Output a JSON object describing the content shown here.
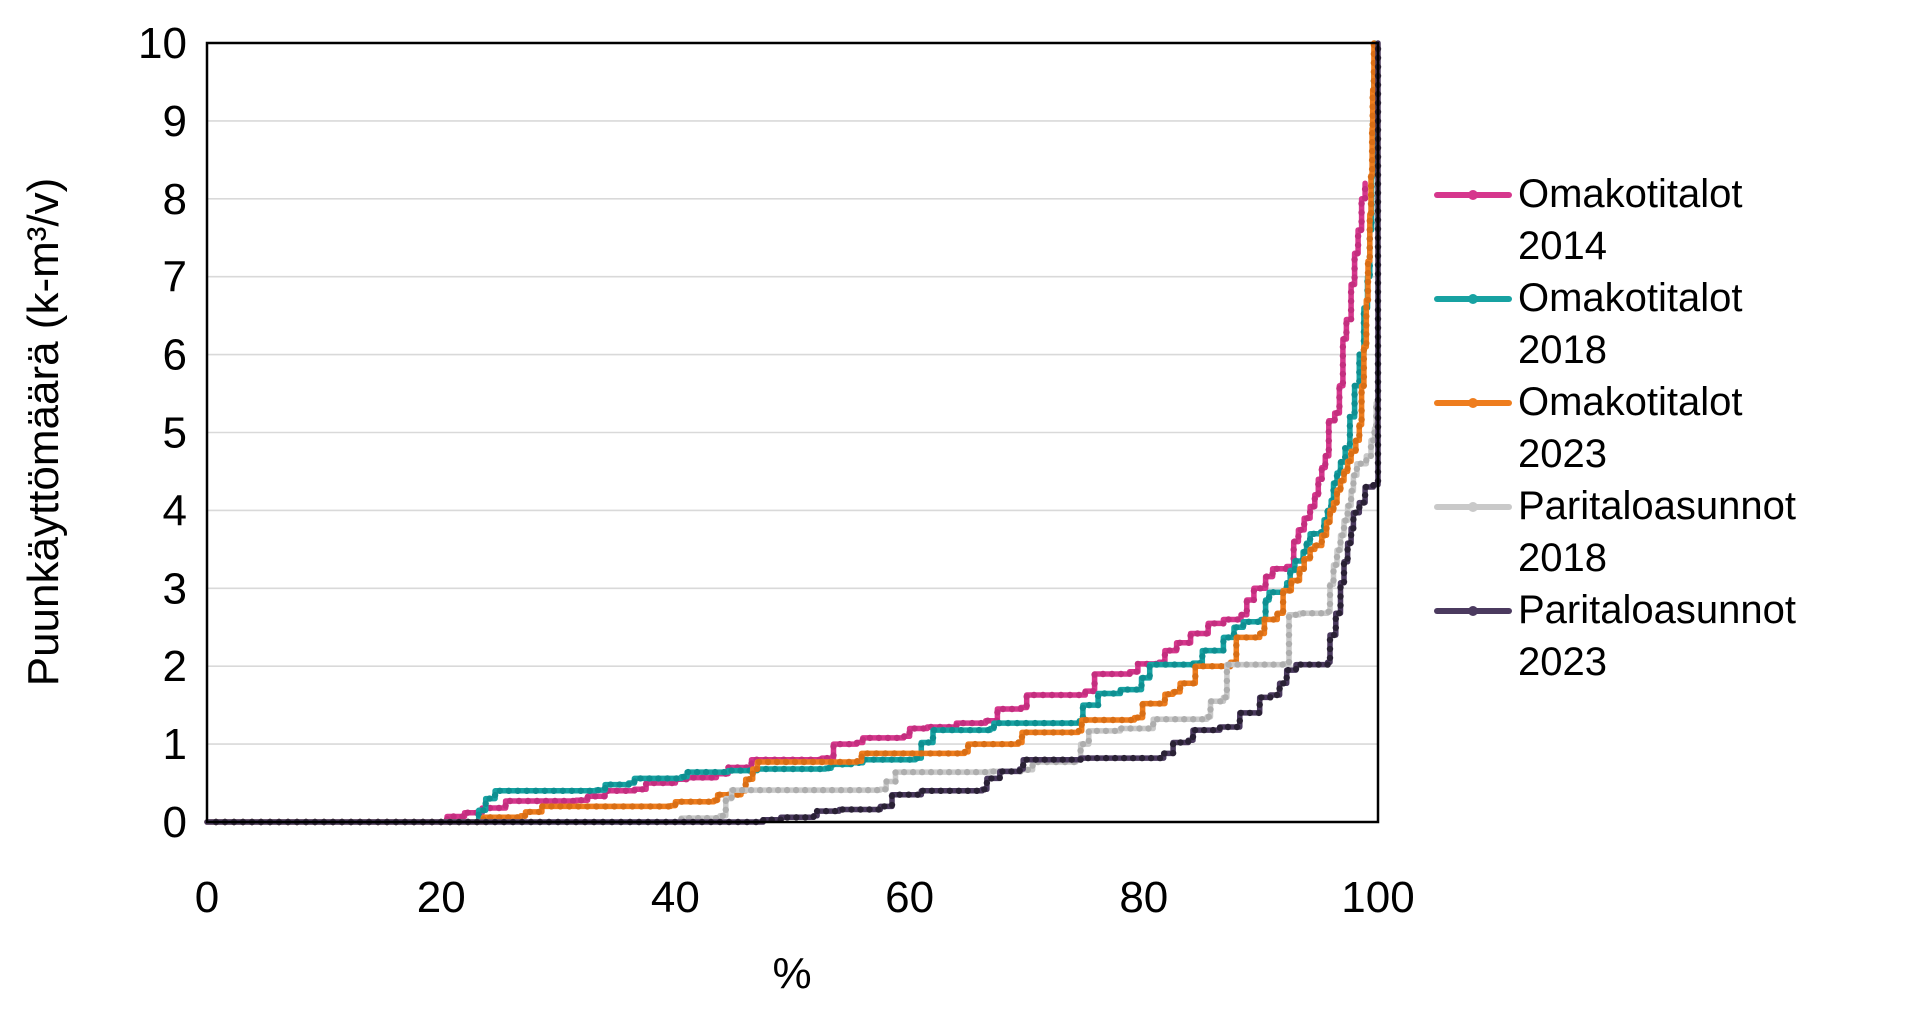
{
  "chart_data": {
    "type": "line",
    "title": "",
    "xlabel": "%",
    "ylabel": "Puunkäyttömäärä (k-m³/v)",
    "xlim": [
      0,
      100
    ],
    "ylim": [
      0,
      10
    ],
    "x_ticks": [
      0,
      20,
      40,
      60,
      80,
      100
    ],
    "y_ticks": [
      0,
      1,
      2,
      3,
      4,
      5,
      6,
      7,
      8,
      9,
      10
    ],
    "grid": "horizontal",
    "grid_color": "#d9d9d9",
    "legend_position": "right",
    "step_interpolation": "step-after",
    "series": [
      {
        "name": "Omakotitalot 2014",
        "label_lines": [
          "Omakotitalot",
          "2014"
        ],
        "color": "#d6378d",
        "marker_color": "#c42e7f",
        "points": [
          [
            0,
            0
          ],
          [
            19.5,
            0
          ],
          [
            20.5,
            0.07
          ],
          [
            22,
            0.12
          ],
          [
            23.5,
            0.18
          ],
          [
            25.5,
            0.27
          ],
          [
            31.5,
            0.28
          ],
          [
            32.5,
            0.33
          ],
          [
            34,
            0.4
          ],
          [
            36.5,
            0.42
          ],
          [
            37.5,
            0.5
          ],
          [
            40,
            0.55
          ],
          [
            41,
            0.57
          ],
          [
            43.5,
            0.62
          ],
          [
            44.5,
            0.7
          ],
          [
            46.5,
            0.8
          ],
          [
            52.5,
            0.82
          ],
          [
            53.5,
            1.0
          ],
          [
            55.5,
            1.02
          ],
          [
            56,
            1.08
          ],
          [
            59.5,
            1.1
          ],
          [
            60,
            1.2
          ],
          [
            61.5,
            1.22
          ],
          [
            64,
            1.27
          ],
          [
            66.5,
            1.3
          ],
          [
            67.5,
            1.45
          ],
          [
            69.5,
            1.47
          ],
          [
            70,
            1.63
          ],
          [
            75,
            1.68
          ],
          [
            75.8,
            1.9
          ],
          [
            78.8,
            1.93
          ],
          [
            79.5,
            2.03
          ],
          [
            81.3,
            2.05
          ],
          [
            81.8,
            2.2
          ],
          [
            82.8,
            2.3
          ],
          [
            84,
            2.42
          ],
          [
            85.5,
            2.55
          ],
          [
            86.8,
            2.6
          ],
          [
            88.3,
            2.66
          ],
          [
            88.8,
            2.85
          ],
          [
            89.4,
            3.0
          ],
          [
            90.4,
            3.15
          ],
          [
            91,
            3.25
          ],
          [
            92.2,
            3.28
          ],
          [
            92.8,
            3.6
          ],
          [
            93.2,
            3.75
          ],
          [
            93.7,
            3.9
          ],
          [
            94.2,
            4.05
          ],
          [
            94.6,
            4.2
          ],
          [
            94.9,
            4.4
          ],
          [
            95.2,
            4.55
          ],
          [
            95.5,
            4.7
          ],
          [
            95.8,
            5.15
          ],
          [
            96.3,
            5.25
          ],
          [
            96.7,
            5.6
          ],
          [
            97,
            6.2
          ],
          [
            97.3,
            6.45
          ],
          [
            97.7,
            6.9
          ],
          [
            98,
            7.3
          ],
          [
            98.3,
            7.6
          ],
          [
            98.6,
            8.0
          ],
          [
            98.9,
            8.2
          ]
        ]
      },
      {
        "name": "Omakotitalot 2018",
        "label_lines": [
          "Omakotitalot",
          "2018"
        ],
        "color": "#17a2a2",
        "marker_color": "#0e8f91",
        "points": [
          [
            0,
            0
          ],
          [
            22.8,
            0
          ],
          [
            23.2,
            0.15
          ],
          [
            23.8,
            0.3
          ],
          [
            24.6,
            0.4
          ],
          [
            33.2,
            0.41
          ],
          [
            34,
            0.48
          ],
          [
            36,
            0.5
          ],
          [
            36.5,
            0.56
          ],
          [
            40.5,
            0.58
          ],
          [
            41,
            0.64
          ],
          [
            44.5,
            0.66
          ],
          [
            47,
            0.68
          ],
          [
            52.8,
            0.69
          ],
          [
            53.3,
            0.74
          ],
          [
            55,
            0.76
          ],
          [
            56,
            0.8
          ],
          [
            60.5,
            0.82
          ],
          [
            61,
            1.02
          ],
          [
            62,
            1.18
          ],
          [
            66.9,
            1.2
          ],
          [
            67.2,
            1.27
          ],
          [
            74.5,
            1.3
          ],
          [
            74.8,
            1.5
          ],
          [
            76.1,
            1.65
          ],
          [
            78,
            1.7
          ],
          [
            79.8,
            1.85
          ],
          [
            80.5,
            2.02
          ],
          [
            84.2,
            2.04
          ],
          [
            85,
            2.2
          ],
          [
            86.8,
            2.37
          ],
          [
            87.7,
            2.5
          ],
          [
            88.5,
            2.57
          ],
          [
            90,
            2.6
          ],
          [
            90.4,
            2.85
          ],
          [
            90.7,
            2.95
          ],
          [
            91.9,
            2.97
          ],
          [
            92.2,
            3.07
          ],
          [
            92.5,
            3.23
          ],
          [
            92.9,
            3.35
          ],
          [
            93.6,
            3.47
          ],
          [
            93.9,
            3.58
          ],
          [
            94.2,
            3.7
          ],
          [
            95.1,
            3.72
          ],
          [
            95.4,
            3.88
          ],
          [
            95.7,
            4.0
          ],
          [
            96,
            4.13
          ],
          [
            96.2,
            4.35
          ],
          [
            96.5,
            4.48
          ],
          [
            96.8,
            4.62
          ],
          [
            97.2,
            4.8
          ],
          [
            97.6,
            5.2
          ],
          [
            98,
            5.6
          ],
          [
            98.4,
            6.0
          ],
          [
            98.8,
            6.6
          ],
          [
            99.1,
            7.0
          ],
          [
            99.3,
            7.6
          ],
          [
            99.45,
            8.3
          ],
          [
            99.55,
            9.0
          ],
          [
            99.65,
            9.6
          ],
          [
            99.7,
            10
          ]
        ]
      },
      {
        "name": "Omakotitalot 2023",
        "label_lines": [
          "Omakotitalot",
          "2023"
        ],
        "color": "#ee7d1e",
        "marker_color": "#d96e15",
        "points": [
          [
            0,
            0
          ],
          [
            23.1,
            0
          ],
          [
            23.6,
            0.06
          ],
          [
            26.8,
            0.08
          ],
          [
            27.2,
            0.13
          ],
          [
            28.6,
            0.2
          ],
          [
            39.6,
            0.21
          ],
          [
            40,
            0.26
          ],
          [
            43.3,
            0.28
          ],
          [
            43.6,
            0.35
          ],
          [
            45.6,
            0.4
          ],
          [
            46,
            0.55
          ],
          [
            46.6,
            0.68
          ],
          [
            47,
            0.77
          ],
          [
            55.5,
            0.78
          ],
          [
            55.9,
            0.88
          ],
          [
            64.7,
            0.9
          ],
          [
            65,
            1.0
          ],
          [
            69.3,
            1.02
          ],
          [
            69.6,
            1.15
          ],
          [
            74.4,
            1.17
          ],
          [
            74.7,
            1.31
          ],
          [
            79.2,
            1.34
          ],
          [
            79.9,
            1.52
          ],
          [
            81.8,
            1.64
          ],
          [
            82.5,
            1.67
          ],
          [
            83.1,
            1.78
          ],
          [
            84.4,
            2.0
          ],
          [
            87.4,
            2.05
          ],
          [
            87.9,
            2.37
          ],
          [
            89.9,
            2.42
          ],
          [
            90.3,
            2.6
          ],
          [
            91.4,
            2.68
          ],
          [
            91.9,
            2.97
          ],
          [
            92.6,
            3.1
          ],
          [
            93.3,
            3.25
          ],
          [
            93.7,
            3.38
          ],
          [
            94.2,
            3.5
          ],
          [
            94.6,
            3.55
          ],
          [
            95.2,
            3.68
          ],
          [
            95.6,
            3.85
          ],
          [
            95.9,
            4.0
          ],
          [
            96.2,
            4.1
          ],
          [
            96.5,
            4.26
          ],
          [
            96.8,
            4.38
          ],
          [
            97.1,
            4.5
          ],
          [
            97.4,
            4.63
          ],
          [
            97.7,
            4.76
          ],
          [
            98.1,
            4.9
          ],
          [
            98.4,
            5.1
          ],
          [
            98.6,
            5.6
          ],
          [
            98.8,
            6.1
          ],
          [
            99,
            6.7
          ],
          [
            99.15,
            7.2
          ],
          [
            99.3,
            7.8
          ],
          [
            99.4,
            8.3
          ],
          [
            99.5,
            8.9
          ],
          [
            99.55,
            9.4
          ],
          [
            99.65,
            10
          ]
        ]
      },
      {
        "name": "Paritaloasunnot 2018",
        "label_lines": [
          "Paritaloasunnot",
          "2018"
        ],
        "color": "#c9c9c9",
        "marker_color": "#aeaeae",
        "points": [
          [
            0,
            0
          ],
          [
            39.8,
            0
          ],
          [
            40.5,
            0.05
          ],
          [
            43.8,
            0.08
          ],
          [
            44.3,
            0.3
          ],
          [
            44.8,
            0.41
          ],
          [
            57.5,
            0.42
          ],
          [
            58,
            0.52
          ],
          [
            58.8,
            0.64
          ],
          [
            66.9,
            0.65
          ],
          [
            69.5,
            0.67
          ],
          [
            70.5,
            0.77
          ],
          [
            74.2,
            0.8
          ],
          [
            74.6,
            1.0
          ],
          [
            75.3,
            1.17
          ],
          [
            78,
            1.2
          ],
          [
            80.8,
            1.32
          ],
          [
            85.4,
            1.35
          ],
          [
            85.7,
            1.55
          ],
          [
            86.8,
            1.6
          ],
          [
            87.1,
            2.02
          ],
          [
            91.9,
            2.03
          ],
          [
            92.4,
            2.66
          ],
          [
            93.3,
            2.68
          ],
          [
            95.7,
            2.7
          ],
          [
            95.9,
            3.05
          ],
          [
            96.2,
            3.3
          ],
          [
            96.5,
            3.49
          ],
          [
            96.8,
            3.68
          ],
          [
            97.1,
            3.87
          ],
          [
            97.4,
            4.06
          ],
          [
            97.7,
            4.25
          ],
          [
            97.9,
            4.45
          ],
          [
            98.2,
            4.6
          ],
          [
            99,
            4.7
          ],
          [
            99.4,
            4.9
          ],
          [
            99.7,
            5.05
          ],
          [
            99.85,
            5.38
          ],
          [
            100,
            6.05
          ]
        ]
      },
      {
        "name": "Paritaloasunnot 2023",
        "label_lines": [
          "Paritaloasunnot",
          "2023"
        ],
        "color": "#4b3a5f",
        "marker_color": "#2a2135",
        "points": [
          [
            0,
            0
          ],
          [
            46.3,
            0
          ],
          [
            47.5,
            0.03
          ],
          [
            49,
            0.06
          ],
          [
            51.8,
            0.08
          ],
          [
            52.1,
            0.14
          ],
          [
            54,
            0.16
          ],
          [
            57.5,
            0.2
          ],
          [
            58.5,
            0.35
          ],
          [
            61,
            0.4
          ],
          [
            66.2,
            0.42
          ],
          [
            66.6,
            0.56
          ],
          [
            67.7,
            0.65
          ],
          [
            69.4,
            0.68
          ],
          [
            69.7,
            0.8
          ],
          [
            74.6,
            0.82
          ],
          [
            81.7,
            0.88
          ],
          [
            82.5,
            1.02
          ],
          [
            83.8,
            1.05
          ],
          [
            84.2,
            1.18
          ],
          [
            86.5,
            1.22
          ],
          [
            88.2,
            1.4
          ],
          [
            89.9,
            1.6
          ],
          [
            90.8,
            1.63
          ],
          [
            91.6,
            1.78
          ],
          [
            92.2,
            1.95
          ],
          [
            93,
            2.02
          ],
          [
            95.7,
            2.05
          ],
          [
            95.9,
            2.4
          ],
          [
            96.4,
            2.68
          ],
          [
            96.8,
            3.07
          ],
          [
            97.1,
            3.34
          ],
          [
            97.4,
            3.58
          ],
          [
            97.7,
            3.77
          ],
          [
            97.9,
            3.97
          ],
          [
            98.4,
            4.1
          ],
          [
            98.9,
            4.3
          ],
          [
            99.6,
            4.33
          ],
          [
            100,
            4.35
          ],
          [
            100,
            10
          ]
        ]
      }
    ]
  }
}
